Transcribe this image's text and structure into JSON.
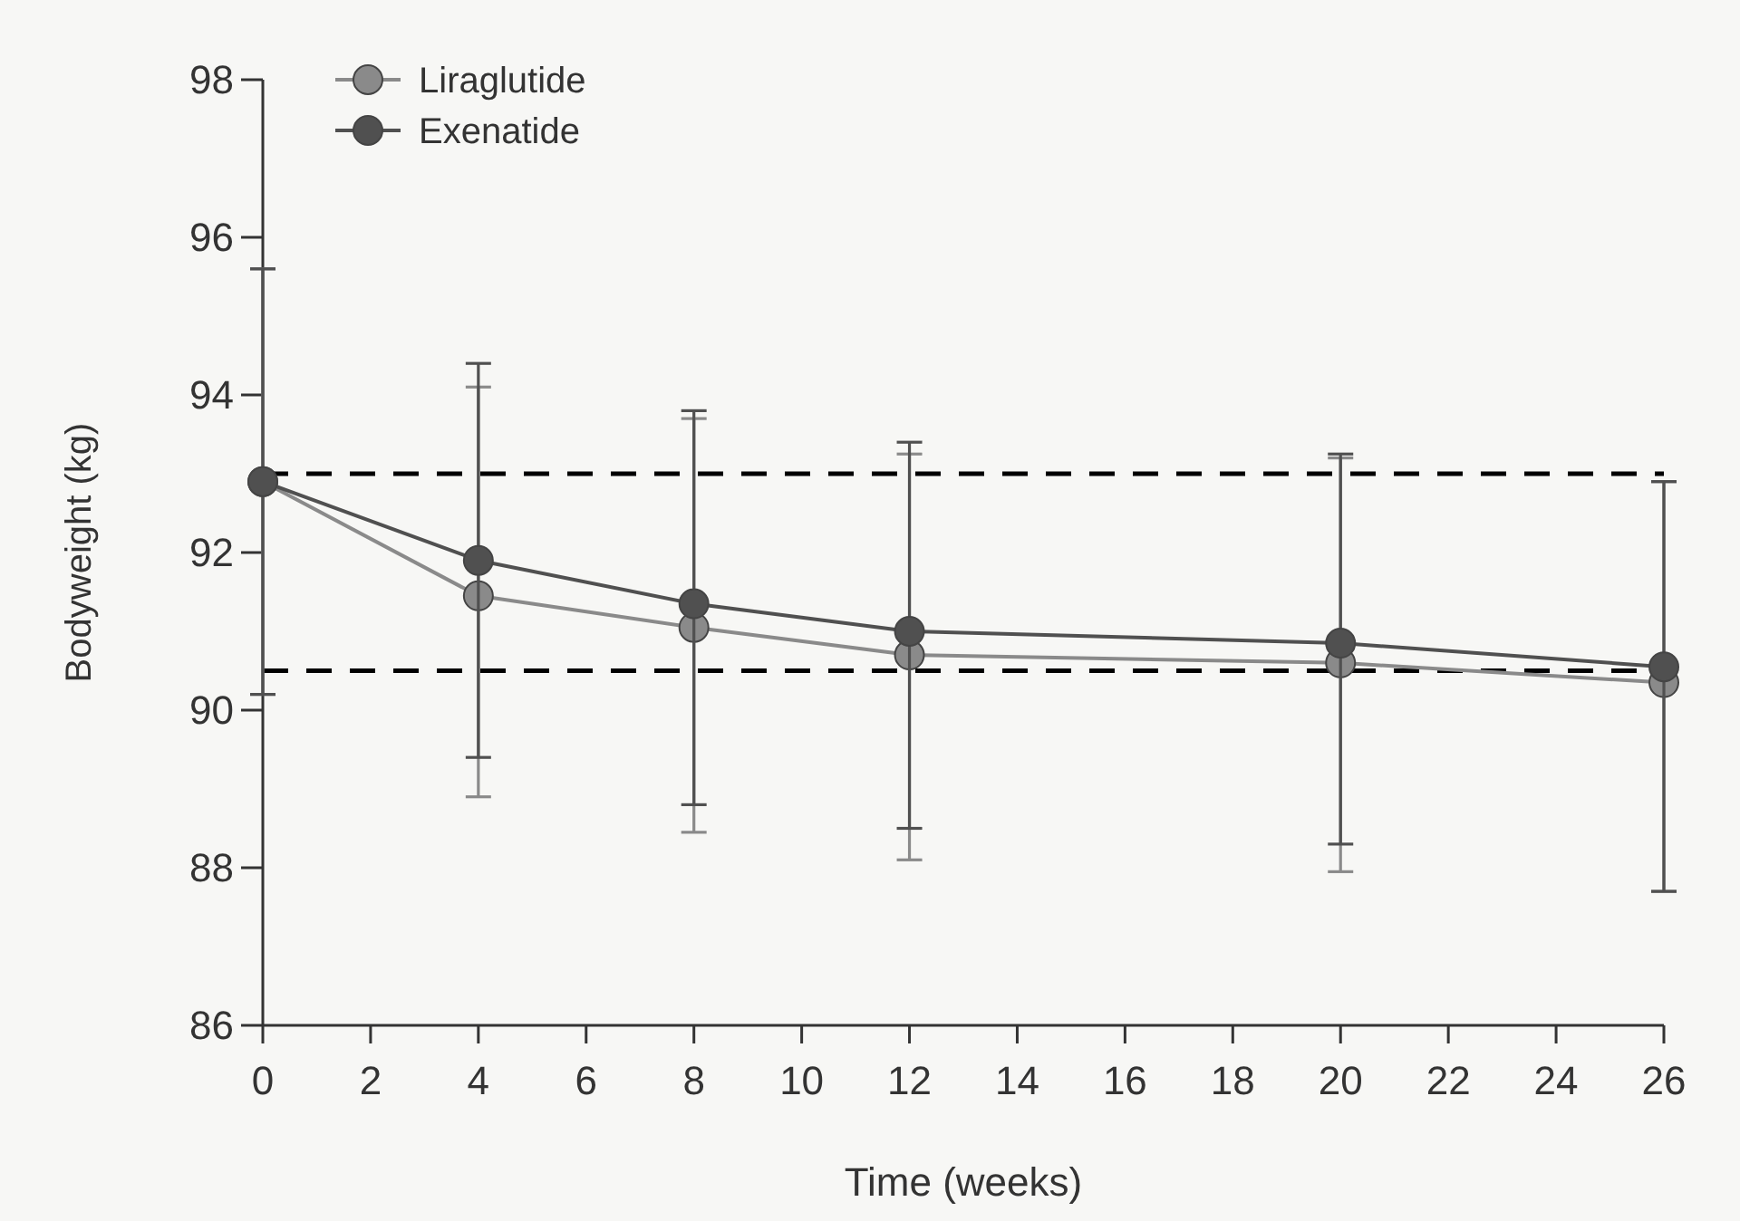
{
  "chart_data": {
    "type": "line",
    "xlabel": "Time (weeks)",
    "ylabel": "Bodyweight (kg)",
    "x": [
      0,
      4,
      8,
      12,
      20,
      26
    ],
    "series": [
      {
        "name": "Liraglutide",
        "color": "#8a8a8a",
        "values": [
          92.9,
          91.45,
          91.05,
          90.7,
          90.6,
          90.35
        ],
        "errors": [
          [
            90.2,
            95.6
          ],
          [
            88.9,
            94.1
          ],
          [
            88.45,
            93.7
          ],
          [
            88.1,
            93.25
          ],
          [
            87.95,
            93.2
          ],
          [
            87.7,
            92.9
          ]
        ]
      },
      {
        "name": "Exenatide",
        "color": "#505050",
        "values": [
          92.9,
          91.9,
          91.35,
          91.0,
          90.85,
          90.55
        ],
        "errors": [
          [
            90.2,
            95.6
          ],
          [
            89.4,
            94.4
          ],
          [
            88.8,
            93.8
          ],
          [
            88.5,
            93.4
          ],
          [
            88.3,
            93.25
          ],
          [
            87.7,
            92.9
          ]
        ]
      }
    ],
    "xlim": [
      0,
      26
    ],
    "xticks": [
      0,
      2,
      4,
      6,
      8,
      10,
      12,
      14,
      16,
      18,
      20,
      22,
      24,
      26
    ],
    "ylim": [
      86,
      98
    ],
    "yticks": [
      86,
      88,
      90,
      92,
      94,
      96,
      98
    ],
    "ref_lines": [
      {
        "axis": "y",
        "value": 93.0,
        "color": "#000000",
        "line_style": "dashed"
      },
      {
        "axis": "y",
        "value": 90.5,
        "color": "#000000",
        "line_style": "dashed"
      }
    ],
    "marker": "circle",
    "line_style": "solid",
    "legend": "top left",
    "grid": false
  }
}
